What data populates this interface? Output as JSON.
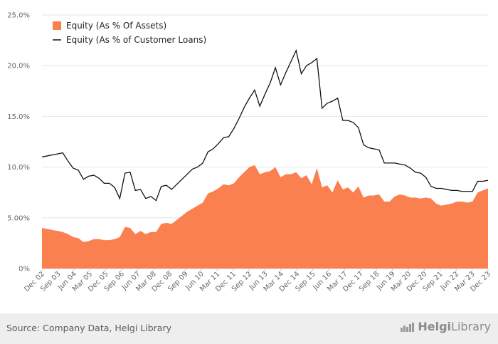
{
  "chart_data": {
    "type": "area",
    "title": "",
    "xlabel": "",
    "ylabel": "",
    "ylim": [
      0,
      25
    ],
    "y_ticks": [
      "0%",
      "5.00%",
      "10.0%",
      "15.0%",
      "20.0%",
      "25.0%"
    ],
    "y_tick_values": [
      0,
      5,
      10,
      15,
      20,
      25
    ],
    "x_ticks": [
      "Dec 02",
      "Sep 03",
      "Jun 04",
      "Mar 05",
      "Dec 05",
      "Sep 06",
      "Jun 07",
      "Mar 08",
      "Dec 08",
      "Sep 09",
      "Jun 10",
      "Mar 11",
      "Dec 11",
      "Sep 12",
      "Jun 13",
      "Mar 14",
      "Dec 14",
      "Sep 15",
      "Jun 16",
      "Mar 17",
      "Dec 17",
      "Sep 18",
      "Jun 19",
      "Mar 20",
      "Dec 20",
      "Sep 21",
      "Jun 22",
      "Mar 23",
      "Dec 23"
    ],
    "legend_position": "top-left",
    "grid": "horizontal",
    "series": [
      {
        "name": "Equity (As % Of Assets)",
        "kind": "area",
        "color": "#fa8050",
        "values": [
          4.0,
          3.9,
          3.8,
          3.7,
          3.6,
          3.4,
          3.1,
          3.0,
          2.6,
          2.7,
          2.9,
          2.9,
          2.8,
          2.8,
          2.9,
          3.1,
          4.1,
          4.0,
          3.4,
          3.7,
          3.4,
          3.6,
          3.6,
          4.4,
          4.5,
          4.4,
          4.8,
          5.2,
          5.6,
          5.9,
          6.2,
          6.5,
          7.4,
          7.6,
          7.9,
          8.3,
          8.2,
          8.4,
          9.0,
          9.5,
          10.0,
          10.2,
          9.3,
          9.5,
          9.6,
          10.0,
          9.0,
          9.3,
          9.3,
          9.5,
          8.9,
          9.2,
          8.3,
          9.9,
          8.0,
          8.2,
          7.5,
          8.7,
          7.8,
          8.0,
          7.5,
          8.1,
          7.0,
          7.2,
          7.2,
          7.3,
          6.6,
          6.6,
          7.1,
          7.3,
          7.2,
          7.0,
          7.0,
          6.9,
          7.0,
          6.9,
          6.4,
          6.2,
          6.3,
          6.4,
          6.6,
          6.6,
          6.5,
          6.6,
          7.5,
          7.7,
          7.9
        ]
      },
      {
        "name": "Equity (As % of Customer Loans)",
        "kind": "line",
        "color": "#111111",
        "values": [
          11.0,
          11.1,
          11.2,
          11.3,
          11.4,
          10.6,
          9.9,
          9.7,
          8.8,
          9.1,
          9.2,
          8.9,
          8.4,
          8.4,
          8.0,
          6.9,
          9.4,
          9.5,
          7.7,
          7.8,
          6.9,
          7.1,
          6.7,
          8.1,
          8.2,
          7.8,
          8.3,
          8.8,
          9.3,
          9.8,
          10.0,
          10.4,
          11.5,
          11.8,
          12.3,
          12.9,
          13.0,
          13.8,
          14.8,
          15.9,
          16.8,
          17.6,
          16.0,
          17.2,
          18.3,
          19.8,
          18.1,
          19.3,
          20.4,
          21.5,
          19.2,
          20.0,
          20.3,
          20.7,
          15.8,
          16.3,
          16.5,
          16.8,
          14.6,
          14.6,
          14.4,
          13.9,
          12.2,
          11.9,
          11.8,
          11.7,
          10.4,
          10.4,
          10.4,
          10.3,
          10.2,
          9.9,
          9.5,
          9.4,
          9.0,
          8.1,
          7.9,
          7.9,
          7.8,
          7.7,
          7.7,
          7.6,
          7.6,
          7.6,
          8.6,
          8.6,
          8.7
        ]
      }
    ]
  },
  "footer": {
    "source": "Source: Company Data, Helgi Library",
    "logo_part1": "Helgi",
    "logo_part2": "Library"
  }
}
